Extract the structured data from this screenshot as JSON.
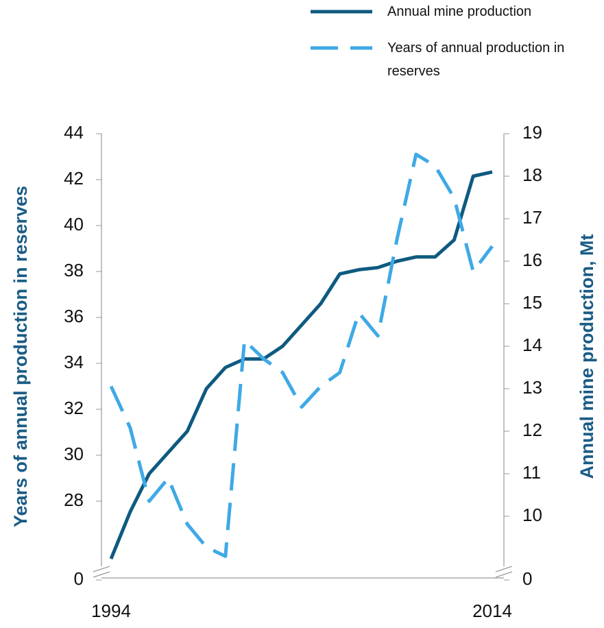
{
  "chart_data": {
    "type": "line",
    "x": [
      1994,
      1995,
      1996,
      1997,
      1998,
      1999,
      2000,
      2001,
      2002,
      2003,
      2004,
      2005,
      2006,
      2007,
      2008,
      2009,
      2010,
      2011,
      2012,
      2013,
      2014
    ],
    "xlim": [
      1994,
      2014
    ],
    "xticks": [
      1994,
      2014
    ],
    "ylabel": "Years of annual production in reserves",
    "y2label": "Annual mine production, Mt",
    "ylim": [
      0,
      44
    ],
    "yticks": [
      0,
      28,
      30,
      32,
      34,
      36,
      38,
      40,
      42,
      44
    ],
    "y2lim": [
      0,
      19
    ],
    "y2ticks": [
      0,
      10,
      11,
      12,
      13,
      14,
      15,
      16,
      17,
      18,
      19
    ],
    "axis_break": true,
    "series": [
      {
        "name": "Annual mine production",
        "color": "#0e5a80",
        "axis": "y2",
        "style": "solid",
        "values": [
          9.0,
          10.1,
          11.0,
          11.5,
          12.0,
          13.0,
          13.5,
          13.7,
          13.7,
          14.0,
          14.5,
          15.0,
          15.7,
          15.8,
          15.85,
          16.0,
          16.1,
          16.1,
          16.5,
          18.0,
          18.1
        ]
      },
      {
        "name": "Years of annual production in reserves",
        "color": "#3fa9e6",
        "axis": "y",
        "style": "dashed",
        "values": [
          33.0,
          31.2,
          28.0,
          29.0,
          27.0,
          26.0,
          25.6,
          35.0,
          34.2,
          33.6,
          32.1,
          33.0,
          33.6,
          36.2,
          35.2,
          39.4,
          43.1,
          42.6,
          41.2,
          38.0,
          39.1
        ]
      }
    ]
  }
}
